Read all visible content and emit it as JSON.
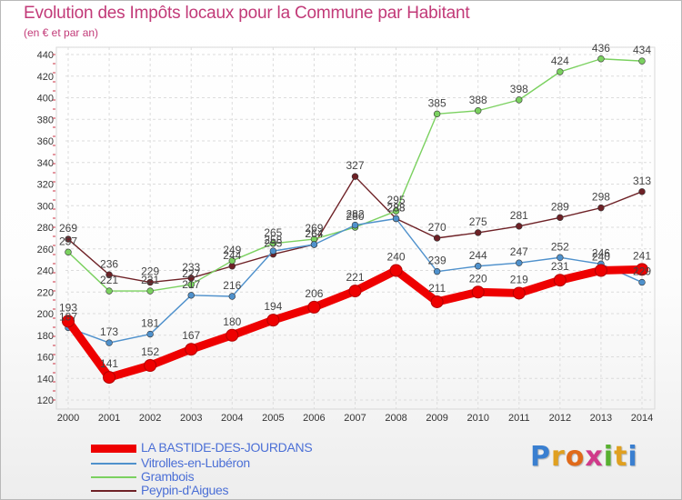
{
  "header": {
    "title": "Evolution des Impôts locaux pour la Commune par Habitant",
    "subtitle": "(en € et par an)"
  },
  "logo": {
    "letters": [
      "P",
      "r",
      "o",
      "x",
      "i",
      "t",
      "i"
    ],
    "colors": [
      "#3a7fd0",
      "#e0a020",
      "#e06a1a",
      "#d03a8a",
      "#58b030",
      "#e0a020",
      "#3a7fd0"
    ]
  },
  "chart_data": {
    "type": "line",
    "x": [
      2000,
      2001,
      2002,
      2003,
      2004,
      2005,
      2006,
      2007,
      2008,
      2009,
      2010,
      2011,
      2012,
      2013,
      2014
    ],
    "ylim": [
      120,
      440
    ],
    "yticks": [
      120,
      140,
      160,
      180,
      200,
      220,
      240,
      260,
      280,
      300,
      320,
      340,
      360,
      380,
      400,
      420,
      440
    ],
    "grid": true,
    "legend_position": "bottom-left",
    "series": [
      {
        "name": "LA BASTIDE-DES-JOURDANS",
        "color": "#ee0000",
        "values": [
          193,
          141,
          152,
          167,
          180,
          194,
          206,
          221,
          240,
          211,
          220,
          219,
          231,
          240,
          241
        ]
      },
      {
        "name": "Vitrolles-en-Lubéron",
        "color": "#4f91cc",
        "values": [
          187,
          173,
          181,
          217,
          216,
          258,
          264,
          282,
          288,
          239,
          244,
          247,
          252,
          246,
          229
        ]
      },
      {
        "name": "Grambois",
        "color": "#7bd160",
        "values": [
          257,
          221,
          221,
          227,
          249,
          265,
          269,
          280,
          295,
          385,
          388,
          398,
          424,
          436,
          434
        ]
      },
      {
        "name": "Peypin-d'Aigues",
        "color": "#6e2126",
        "values": [
          269,
          236,
          229,
          233,
          244,
          255,
          264,
          327,
          288,
          270,
          275,
          281,
          289,
          298,
          313
        ]
      }
    ]
  }
}
